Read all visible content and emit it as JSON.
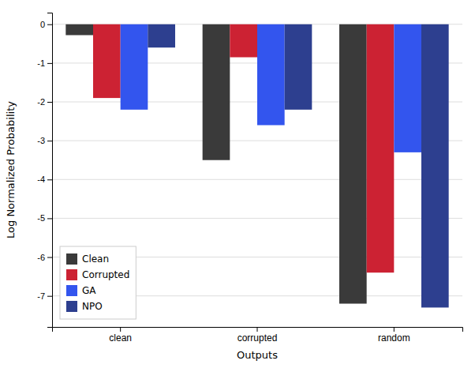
{
  "chart_data": {
    "type": "bar",
    "categories": [
      "clean",
      "corrupted",
      "random"
    ],
    "series": [
      {
        "name": "Clean",
        "color": "#3a3a3a",
        "values": [
          -0.28,
          -3.5,
          -7.2
        ]
      },
      {
        "name": "Corrupted",
        "color": "#cc2233",
        "values": [
          -1.9,
          -0.85,
          -6.4
        ]
      },
      {
        "name": "GA",
        "color": "#3355ee",
        "values": [
          -2.2,
          -2.6,
          -3.3
        ]
      },
      {
        "name": "NPO",
        "color": "#2d3f8f",
        "values": [
          -0.6,
          -2.2,
          -7.3
        ]
      }
    ],
    "xlabel": "Outputs",
    "ylabel": "Log Normalized Probability",
    "ylim": [
      -7.8,
      0.3
    ],
    "yticks": [
      0,
      -1,
      -2,
      -3,
      -4,
      -5,
      -6,
      -7
    ],
    "grid": true,
    "legend": "lower left"
  }
}
